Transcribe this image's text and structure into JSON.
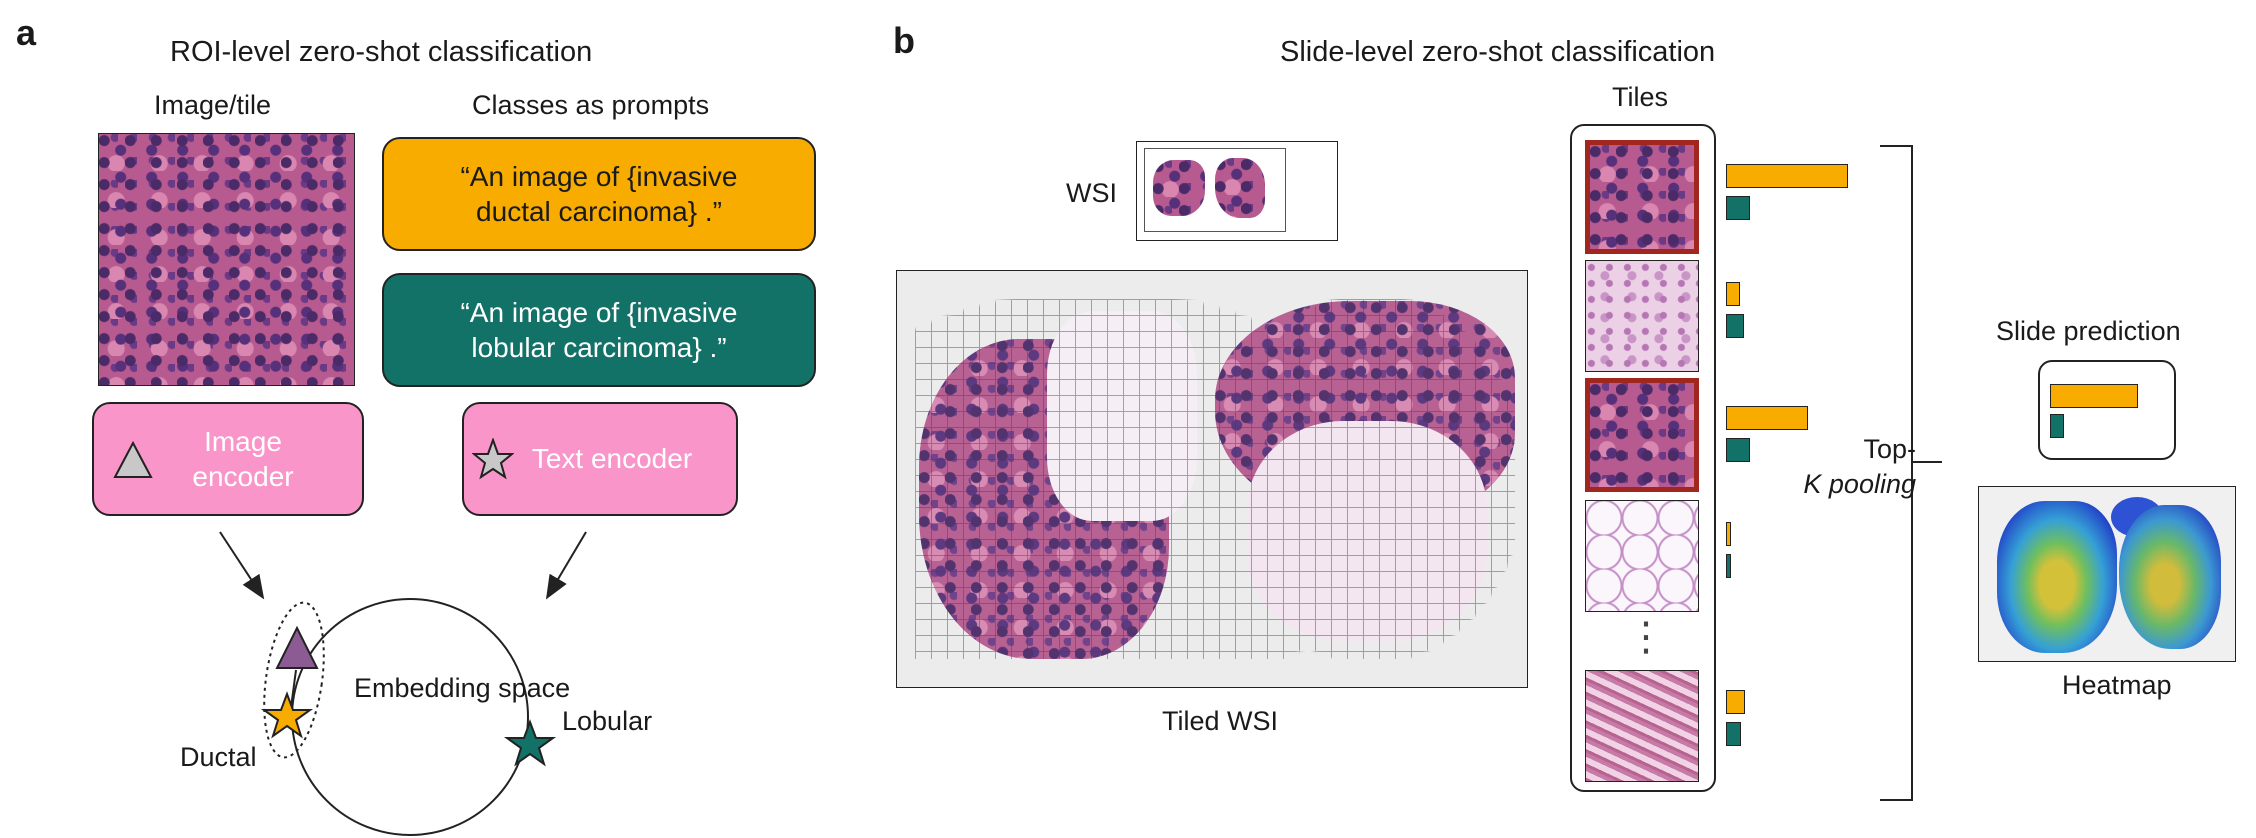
{
  "panel_a": {
    "letter": "a",
    "title": "ROI-level zero-shot classification",
    "image_tile_label": "Image/tile",
    "classes_label": "Classes as prompts",
    "prompt_ductal": "“An image of {invasive ductal carcinoma} .”",
    "prompt_lobular": "“An image of {invasive lobular carcinoma} .”",
    "image_encoder": "Image encoder",
    "text_encoder": "Text encoder",
    "embedding_space": "Embedding space",
    "ductal_label": "Ductal",
    "lobular_label": "Lobular"
  },
  "panel_b": {
    "letter": "b",
    "title": "Slide-level zero-shot classification",
    "wsi_label": "WSI",
    "tiled_wsi_label": "Tiled WSI",
    "tiles_label": "Tiles",
    "ellipsis": "⋮",
    "pooling_line1": "Top-",
    "pooling_line2": "K pooling",
    "slide_prediction_label": "Slide prediction",
    "heatmap_label": "Heatmap"
  },
  "colors": {
    "ductal": "#f9ac00",
    "lobular": "#137268",
    "encoder": "#f995c9",
    "selected_tile_border": "#a1261d",
    "embedding_triangle": "#8c5b94"
  },
  "tile_scores": [
    {
      "tile": "tile-1",
      "selected": true,
      "ductal": 0.9,
      "lobular": 0.18
    },
    {
      "tile": "tile-2",
      "selected": false,
      "ductal": 0.1,
      "lobular": 0.13
    },
    {
      "tile": "tile-3",
      "selected": true,
      "ductal": 0.6,
      "lobular": 0.18
    },
    {
      "tile": "tile-4",
      "selected": false,
      "ductal": 0.04,
      "lobular": 0.04
    },
    {
      "tile": "tile-5",
      "selected": false,
      "ductal": 0.14,
      "lobular": 0.11
    }
  ],
  "slide_prediction": {
    "ductal": 0.88,
    "lobular": 0.14
  }
}
